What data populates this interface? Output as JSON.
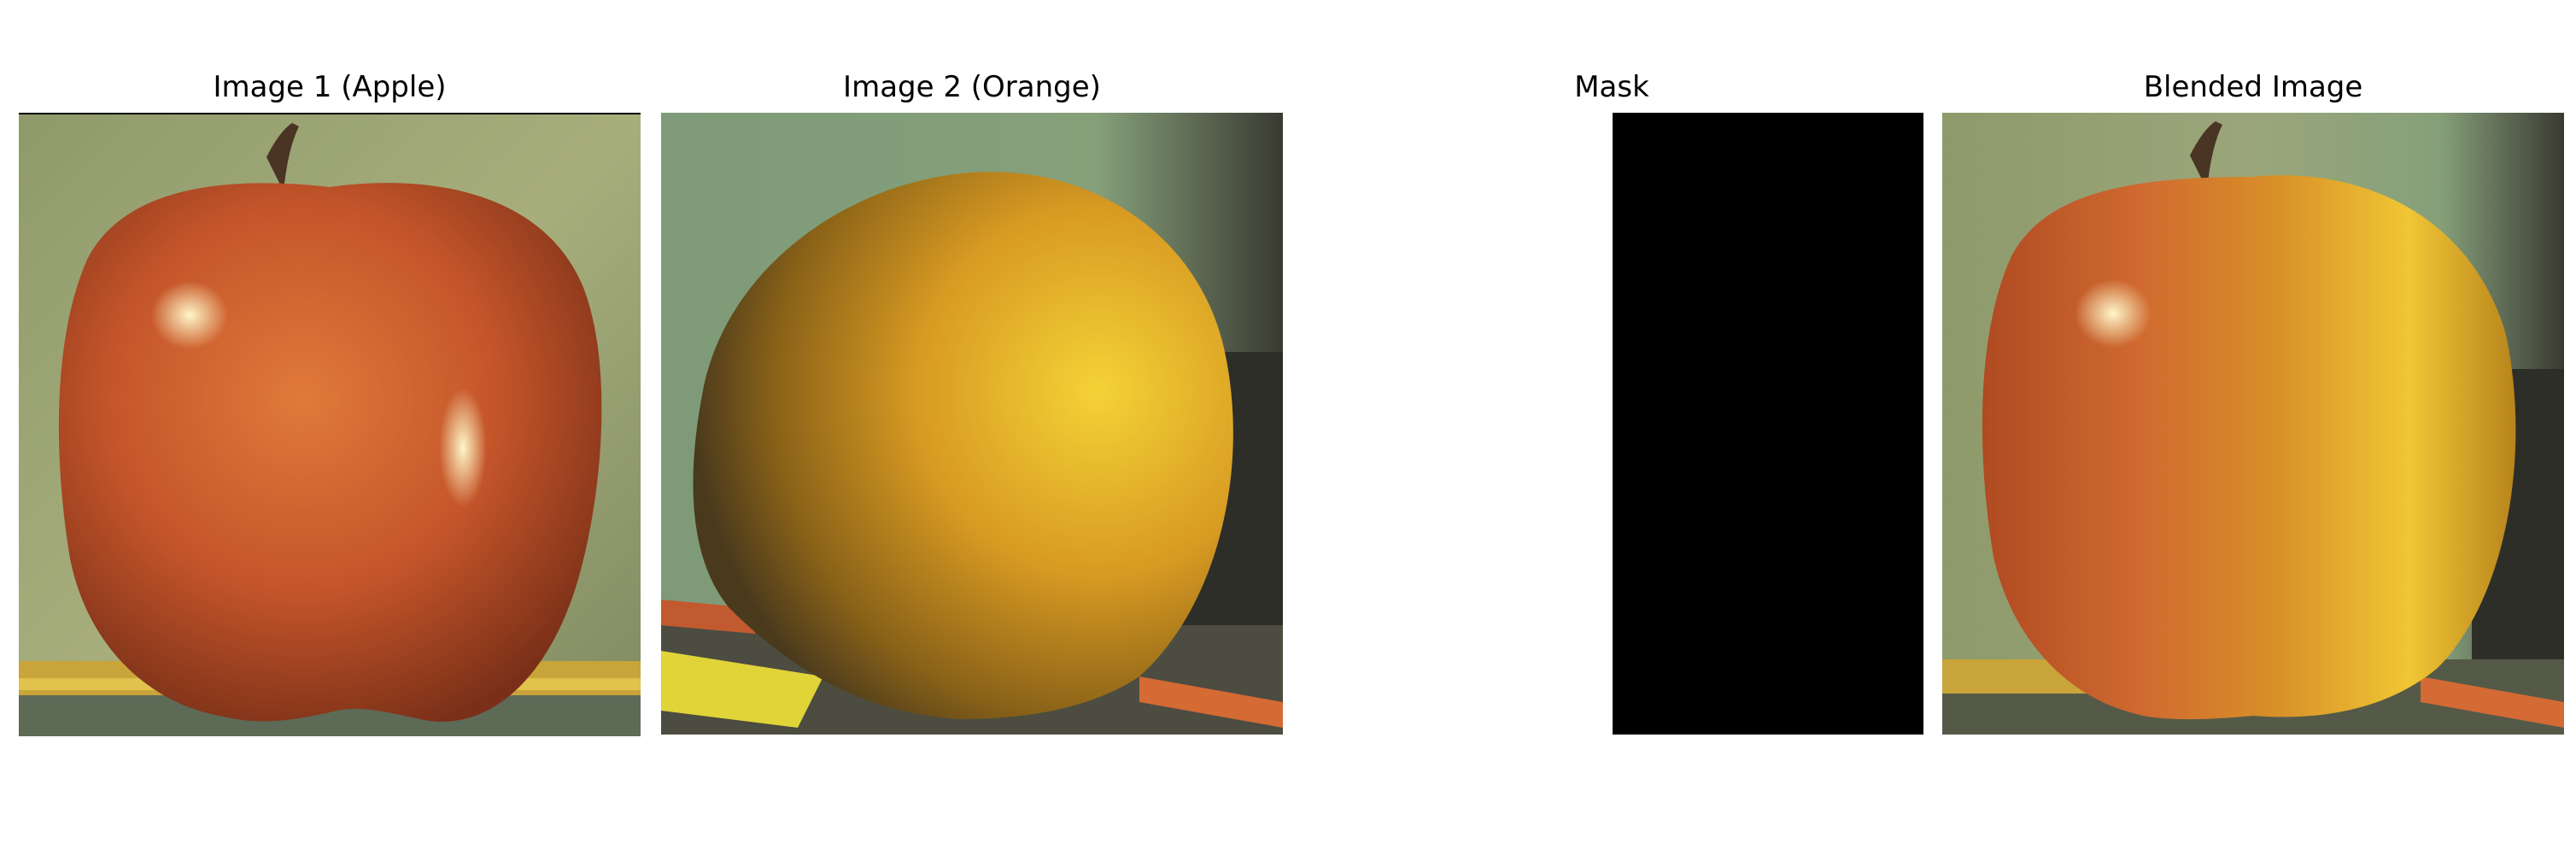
{
  "panels": [
    {
      "title": "Image 1 (Apple)"
    },
    {
      "title": "Image 2 (Orange)"
    },
    {
      "title": "Mask"
    },
    {
      "title": "Blended Image"
    }
  ],
  "colors": {
    "mask_fill": "#000000",
    "background": "#ffffff"
  }
}
